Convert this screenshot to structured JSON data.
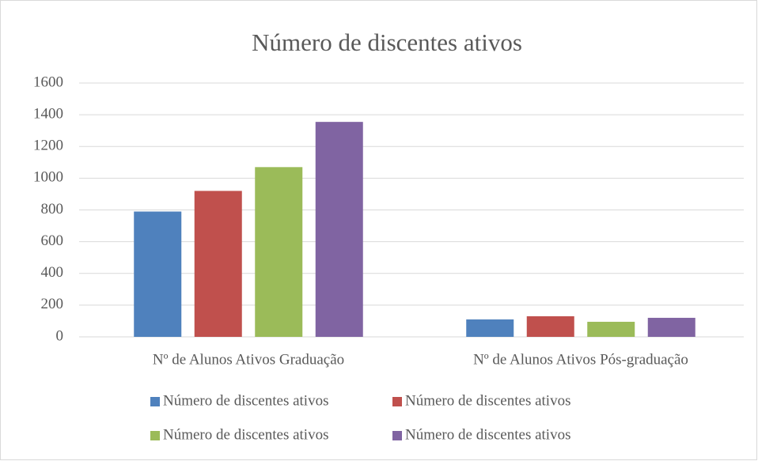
{
  "chart_data": {
    "type": "bar",
    "title": "Número de discentes ativos",
    "categories": [
      "Nº de Alunos Ativos  Graduação",
      "Nº de Alunos Ativos  Pós-graduação"
    ],
    "series": [
      {
        "name": "Número de discentes ativos",
        "color": "#4f81bd",
        "values": [
          790,
          110
        ]
      },
      {
        "name": "Número de discentes ativos",
        "color": "#c0504d",
        "values": [
          920,
          130
        ]
      },
      {
        "name": "Número de discentes ativos",
        "color": "#9bbb59",
        "values": [
          1070,
          95
        ]
      },
      {
        "name": "Número de discentes ativos",
        "color": "#8064a2",
        "values": [
          1355,
          120
        ]
      }
    ],
    "ylim": [
      0,
      1600
    ],
    "yticks": [
      0,
      200,
      400,
      600,
      800,
      1000,
      1200,
      1400,
      1600
    ],
    "grid": true,
    "legend": "bottom"
  }
}
